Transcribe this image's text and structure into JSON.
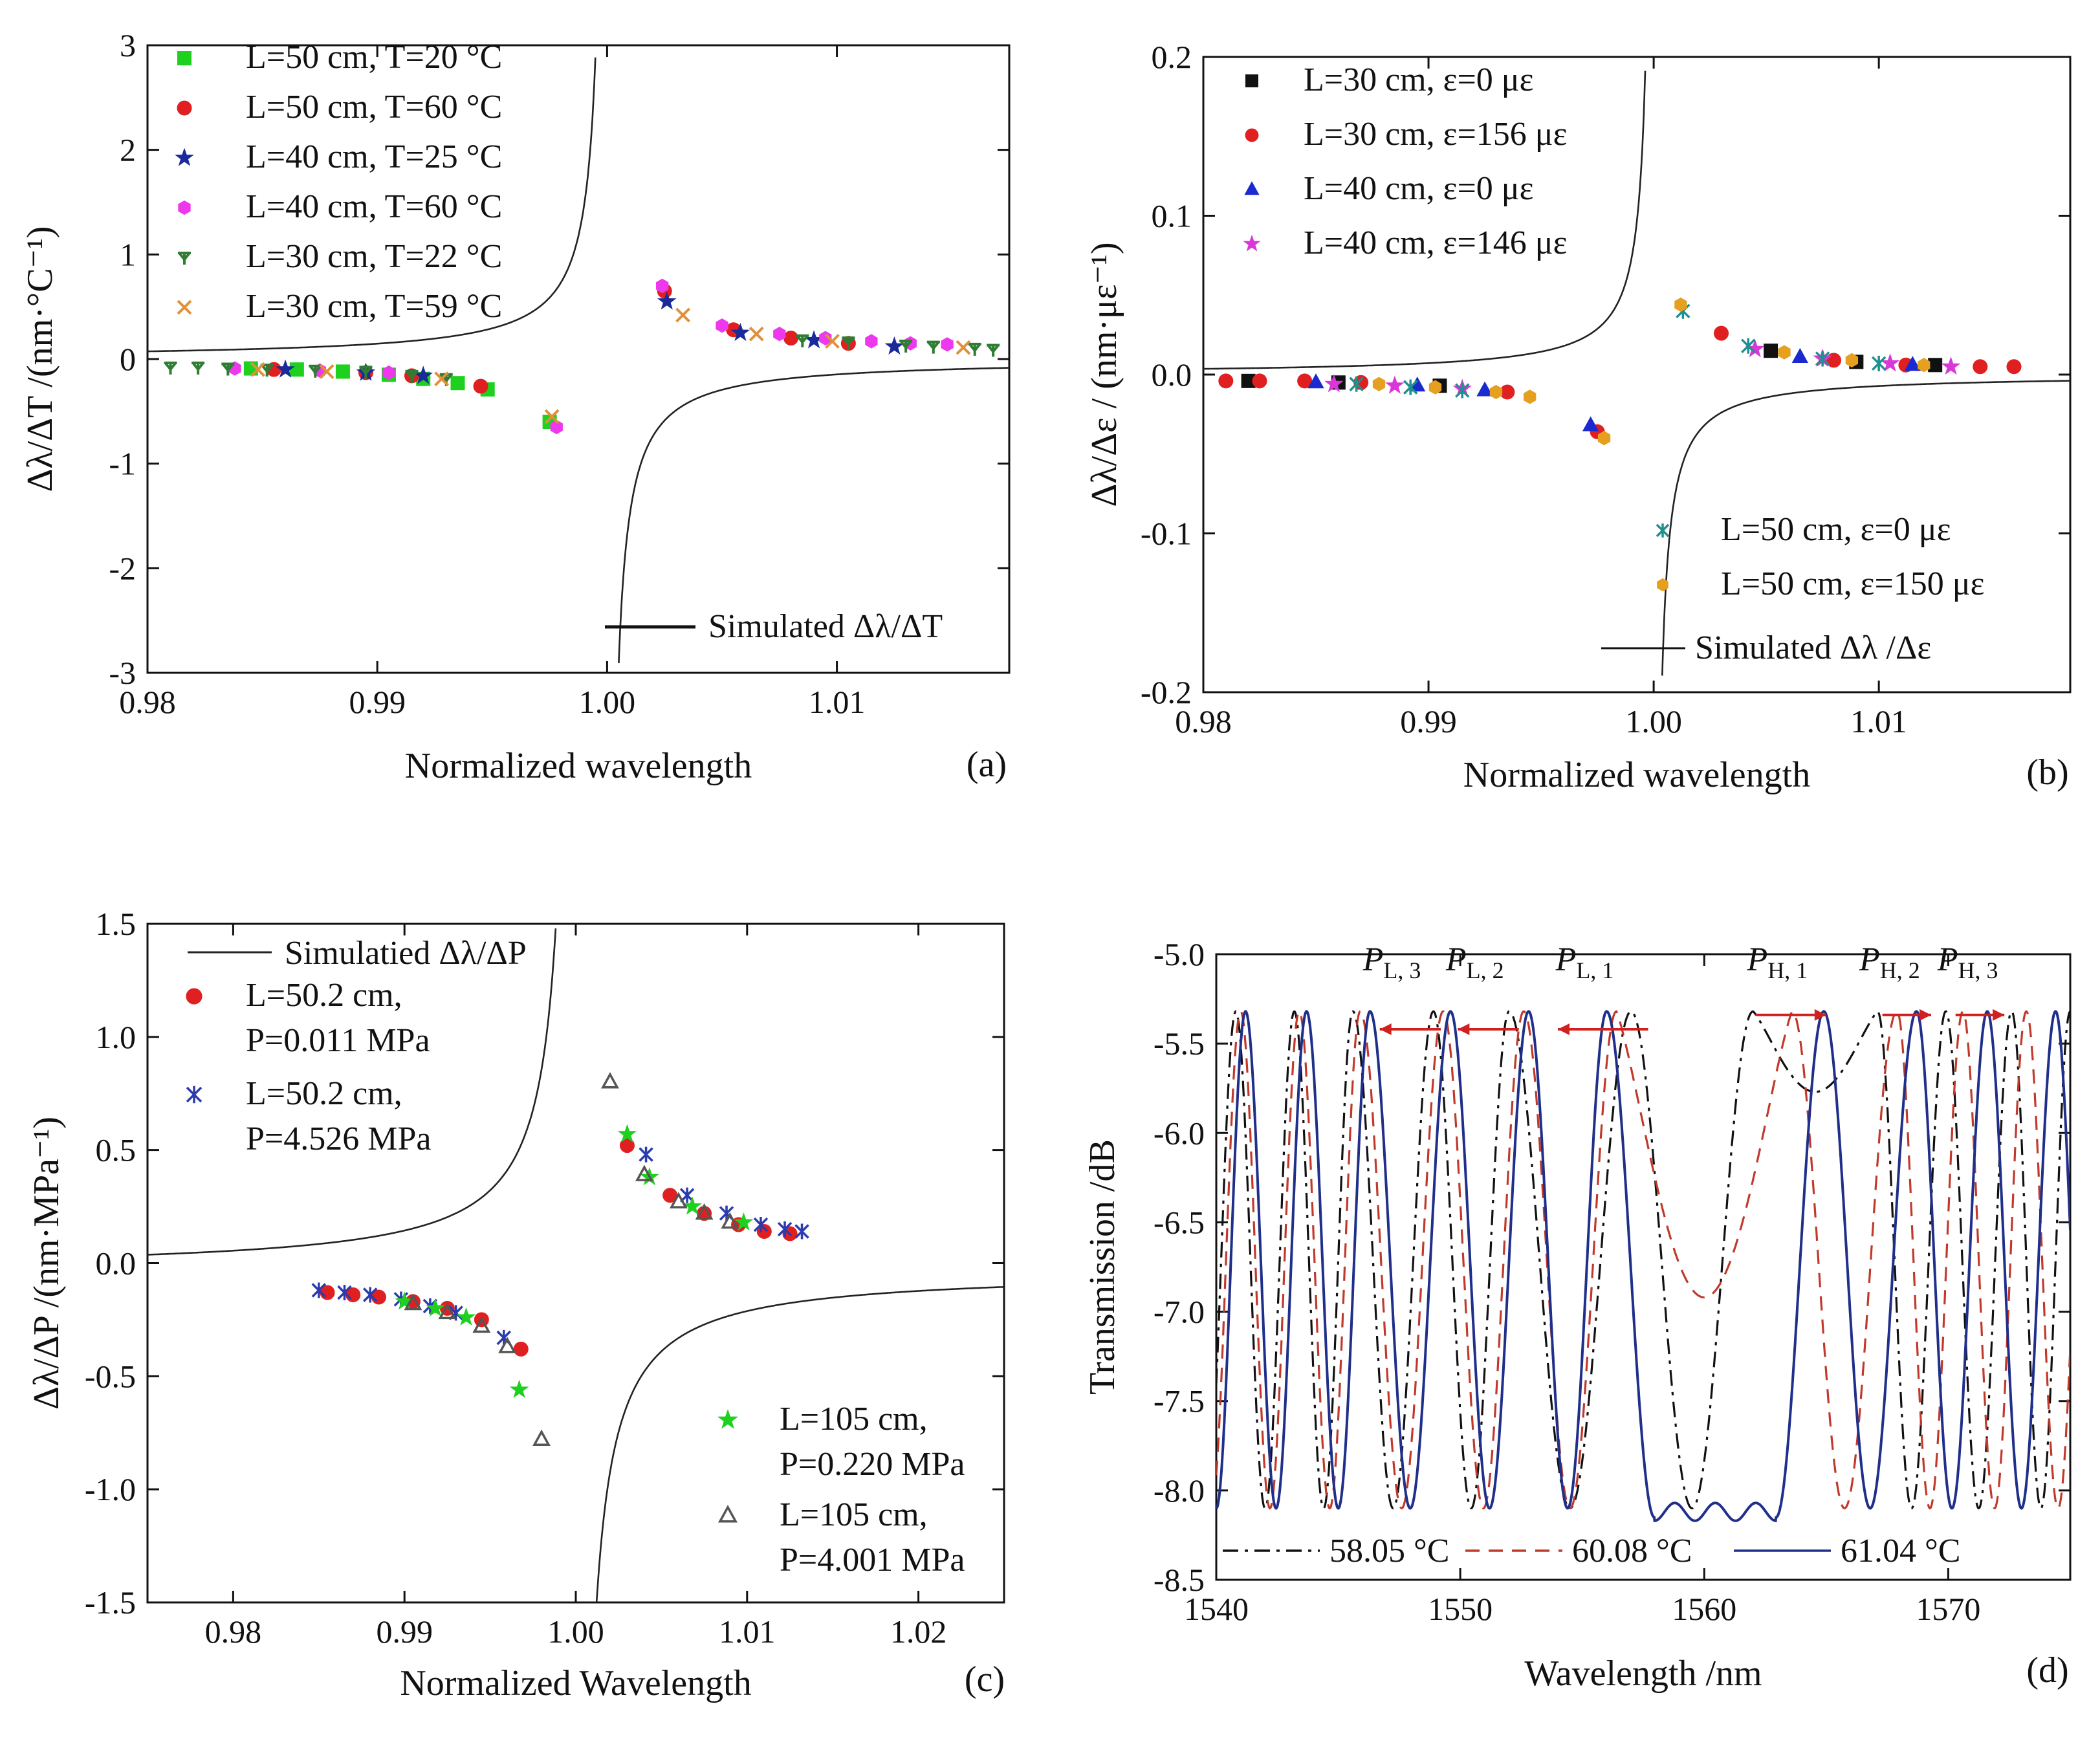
{
  "chart_data": [
    {
      "id": "a",
      "type": "scatter",
      "panel_label": "(a)",
      "xlabel": "Normalized wavelength",
      "ylabel": "Δλ/ΔT /(nm·°C⁻¹)",
      "xlim": [
        0.98,
        1.0175
      ],
      "ylim": [
        -3,
        3
      ],
      "xticks": [
        0.98,
        0.99,
        1.0,
        1.01
      ],
      "xtick_labels": [
        "0.98",
        "0.99",
        "1.00",
        "1.01"
      ],
      "yticks": [
        -3,
        -2,
        -1,
        0,
        1,
        2,
        3
      ],
      "ytick_labels": [
        "-3",
        "-2",
        "-1",
        "0",
        "1",
        "2",
        "3"
      ],
      "legend_position": "top-left",
      "curve": {
        "label": "Simulated Δλ/ΔT",
        "k": -0.00147,
        "c": 0.0
      },
      "series": [
        {
          "name": "L=50 cm, T=20 °C",
          "color": "#1fd11f",
          "marker": "square",
          "x": [
            0.9845,
            0.9865,
            0.9885,
            0.9905,
            0.992,
            0.9935,
            0.9948,
            0.9975
          ],
          "y": [
            -0.09,
            -0.1,
            -0.12,
            -0.15,
            -0.19,
            -0.23,
            -0.29,
            -0.6
          ]
        },
        {
          "name": "L=50 cm, T=60 °C",
          "color": "#e02020",
          "marker": "circle",
          "x": [
            0.9855,
            0.9895,
            0.9915,
            0.9945,
            1.0025,
            1.0055,
            1.008,
            1.0105
          ],
          "y": [
            -0.1,
            -0.13,
            -0.16,
            -0.26,
            0.65,
            0.28,
            0.2,
            0.15
          ]
        },
        {
          "name": "L=40 cm, T=25 °C",
          "color": "#1a2a9a",
          "marker": "star",
          "x": [
            0.986,
            0.9895,
            0.992,
            1.0026,
            1.0058,
            1.009,
            1.0125
          ],
          "y": [
            -0.1,
            -0.13,
            -0.16,
            0.55,
            0.25,
            0.18,
            0.12
          ]
        },
        {
          "name": "L=40 cm, T=60 °C",
          "color": "#ee38ee",
          "marker": "hexagon",
          "x": [
            0.9838,
            0.9875,
            0.9905,
            0.9978,
            1.0024,
            1.005,
            1.0075,
            1.0095,
            1.0115,
            1.0132,
            1.0148
          ],
          "y": [
            -0.09,
            -0.11,
            -0.13,
            -0.65,
            0.7,
            0.32,
            0.24,
            0.2,
            0.17,
            0.15,
            0.14
          ]
        },
        {
          "name": "L=30 cm, T=22 °C",
          "color": "#2e7d32",
          "marker": "tri",
          "x": [
            0.981,
            0.9822,
            0.9835,
            0.9852,
            0.9873,
            0.9895,
            0.9915,
            0.993,
            1.0085,
            1.0105,
            1.013,
            1.0142,
            1.016,
            1.0168
          ],
          "y": [
            -0.08,
            -0.08,
            -0.09,
            -0.1,
            -0.11,
            -0.12,
            -0.16,
            -0.19,
            0.18,
            0.16,
            0.13,
            0.12,
            0.1,
            0.09
          ]
        },
        {
          "name": "L=30 cm, T=59 °C",
          "color": "#e0903a",
          "marker": "x",
          "x": [
            0.9848,
            0.9878,
            0.9928,
            0.9976,
            1.0033,
            1.0065,
            1.0098,
            1.0155
          ],
          "y": [
            -0.1,
            -0.12,
            -0.19,
            -0.55,
            0.42,
            0.24,
            0.17,
            0.11
          ]
        }
      ]
    },
    {
      "id": "b",
      "type": "scatter",
      "panel_label": "(b)",
      "xlabel": "Normalized wavelength",
      "ylabel": "Δλ/Δε / (nm·με⁻¹)",
      "xlim": [
        0.98,
        1.0185
      ],
      "ylim": [
        -0.2,
        0.2
      ],
      "xticks": [
        0.98,
        0.99,
        1.0,
        1.01
      ],
      "xtick_labels": [
        "0.98",
        "0.99",
        "1.00",
        "1.01"
      ],
      "yticks": [
        -0.2,
        -0.1,
        0.0,
        0.1,
        0.2
      ],
      "ytick_labels": [
        "-0.2",
        "-0.1",
        "0.0",
        "0.1",
        "0.2"
      ],
      "legend_position": "top-left and bottom-right",
      "curve": {
        "label": "Simulated Δλ /Δε",
        "k": -7.2e-05,
        "c": 0.0
      },
      "series": [
        {
          "name": "L=30 cm, ε=0 με",
          "color": "#111111",
          "marker": "square",
          "x": [
            0.982,
            0.986,
            0.9905,
            1.0052,
            1.009,
            1.0125
          ],
          "y": [
            -0.004,
            -0.005,
            -0.007,
            0.015,
            0.008,
            0.006
          ]
        },
        {
          "name": "L=30 cm, ε=156 με",
          "color": "#e02020",
          "marker": "circle",
          "x": [
            0.981,
            0.9825,
            0.9845,
            0.987,
            0.9935,
            0.9975,
            1.003,
            1.008,
            1.0112,
            1.0145,
            1.016
          ],
          "y": [
            -0.004,
            -0.004,
            -0.004,
            -0.005,
            -0.011,
            -0.036,
            0.026,
            0.009,
            0.006,
            0.005,
            0.005
          ]
        },
        {
          "name": "L=40 cm, ε=0 με",
          "color": "#1a2ad0",
          "marker": "triangle",
          "x": [
            0.985,
            0.9895,
            0.9925,
            0.9972,
            1.0065,
            1.0115
          ],
          "y": [
            -0.005,
            -0.007,
            -0.01,
            -0.032,
            0.011,
            0.006
          ]
        },
        {
          "name": "L=40 cm, ε=146 με",
          "color": "#d838d8",
          "marker": "star",
          "x": [
            0.9858,
            0.9885,
            0.9915,
            1.0045,
            1.0075,
            1.0105,
            1.0132
          ],
          "y": [
            -0.006,
            -0.007,
            -0.009,
            0.016,
            0.01,
            0.007,
            0.005
          ]
        },
        {
          "name": "L=50 cm, ε=0 με",
          "color": "#1f8f8f",
          "marker": "asterisk",
          "x": [
            0.9868,
            0.9892,
            0.9915,
            1.0013,
            1.0042,
            1.0075,
            1.01
          ],
          "y": [
            -0.006,
            -0.008,
            -0.01,
            0.04,
            0.018,
            0.01,
            0.007
          ]
        },
        {
          "name": "L=50 cm, ε=150 με",
          "color": "#e6a020",
          "marker": "hexagon",
          "x": [
            0.9878,
            0.9903,
            0.993,
            0.9945,
            0.9978,
            1.0012,
            1.0058,
            1.0088,
            1.012
          ],
          "y": [
            -0.006,
            -0.008,
            -0.011,
            -0.014,
            -0.04,
            0.044,
            0.014,
            0.009,
            0.006
          ]
        }
      ]
    },
    {
      "id": "c",
      "type": "scatter",
      "panel_label": "(c)",
      "xlabel": "Normalized Wavelength",
      "ylabel": "Δλ/ΔP /(nm·MPa⁻¹)",
      "xlim": [
        0.975,
        1.025
      ],
      "ylim": [
        -1.5,
        1.5
      ],
      "xticks": [
        0.98,
        0.99,
        1.0,
        1.01,
        1.02
      ],
      "xtick_labels": [
        "0.98",
        "0.99",
        "1.00",
        "1.01",
        "1.02"
      ],
      "yticks": [
        -1.5,
        -1.0,
        -0.5,
        0.0,
        0.5,
        1.0,
        1.5
      ],
      "ytick_labels": [
        "-1.5",
        "-1.0",
        "-0.5",
        "0.0",
        "0.5",
        "1.0",
        "1.5"
      ],
      "legend_position": "top-left and bottom-right",
      "curve": {
        "label": "Simulatied Δλ/ΔP",
        "k": -0.00178,
        "c": -0.034
      },
      "series": [
        {
          "name": "L=50.2 cm, P=0.011 MPa",
          "label_lines": [
            "L=50.2 cm,",
            "P=0.011 MPa"
          ],
          "color": "#e02020",
          "marker": "circle",
          "x": [
            0.9855,
            0.987,
            0.9885,
            0.9905,
            0.9925,
            0.9945,
            0.9968,
            1.003,
            1.0055,
            1.0075,
            1.0095,
            1.011,
            1.0125
          ],
          "y": [
            -0.13,
            -0.14,
            -0.15,
            -0.17,
            -0.2,
            -0.25,
            -0.38,
            0.52,
            0.3,
            0.22,
            0.17,
            0.14,
            0.13
          ]
        },
        {
          "name": "L=50.2 cm, P=4.526 MPa",
          "label_lines": [
            "L=50.2 cm,",
            "P=4.526 MPa"
          ],
          "color": "#2a3ab0",
          "marker": "asterisk",
          "x": [
            0.985,
            0.9865,
            0.988,
            0.9898,
            0.9915,
            0.993,
            0.9958,
            1.0041,
            1.0065,
            1.0088,
            1.0108,
            1.0122,
            1.0132
          ],
          "y": [
            -0.12,
            -0.13,
            -0.14,
            -0.16,
            -0.19,
            -0.22,
            -0.33,
            0.48,
            0.3,
            0.22,
            0.17,
            0.15,
            0.14
          ]
        },
        {
          "name": "L=105 cm, P=0.220 MPa",
          "label_lines": [
            "L=105 cm,",
            "P=0.220 MPa"
          ],
          "color": "#1fd11f",
          "marker": "star",
          "x": [
            0.99,
            0.9918,
            0.9936,
            0.9967,
            1.003,
            1.0043,
            1.0068,
            1.0098
          ],
          "y": [
            -0.17,
            -0.2,
            -0.24,
            -0.56,
            0.57,
            0.38,
            0.25,
            0.18
          ]
        },
        {
          "name": "L=105 cm, P=4.001 MPa",
          "label_lines": [
            "L=105 cm,",
            "P=4.001 MPa"
          ],
          "color": "#555555",
          "marker": "open-triangle",
          "x": [
            0.9905,
            0.9925,
            0.9945,
            0.996,
            0.998,
            1.002,
            1.004,
            1.006,
            1.0075,
            1.009
          ],
          "y": [
            -0.18,
            -0.22,
            -0.28,
            -0.37,
            -0.78,
            0.8,
            0.39,
            0.27,
            0.22,
            0.18
          ]
        }
      ]
    },
    {
      "id": "d",
      "type": "line",
      "panel_label": "(d)",
      "xlabel": "Wavelength /nm",
      "ylabel": "Transmission /dB",
      "xlim": [
        1540,
        1575
      ],
      "ylim": [
        -8.5,
        -5.0
      ],
      "xticks": [
        1540,
        1550,
        1560,
        1570
      ],
      "xtick_labels": [
        "1540",
        "1550",
        "1560",
        "1570"
      ],
      "yticks": [
        -8.5,
        -8.0,
        -7.5,
        -7.0,
        -6.5,
        -6.0,
        -5.5,
        -5.0
      ],
      "ytick_labels": [
        "-8.5",
        "-8.0",
        "-7.5",
        "-7.0",
        "-6.5",
        "-6.0",
        "-5.5",
        "-5.0"
      ],
      "legend_position": "bottom",
      "spectrum_model": {
        "center_nm": [
          1559.5,
          1561.6,
          1566.5
        ],
        "beat_period_nm": 2.4
      },
      "series": [
        {
          "name": "58.05 °C",
          "color": "#111111",
          "dash": "dashdot",
          "peaks_nm": [
            1540.8,
            1543.2,
            1545.6,
            1548.9,
            1552.0,
            1557.0,
            1562.0,
            1567.1,
            1569.9,
            1572.6,
            1575.0
          ],
          "dip_depth_db": 0.45
        },
        {
          "name": "60.08 °C",
          "color": "#c0392b",
          "dash": "dash",
          "peaks_nm": [
            1541.0,
            1543.4,
            1545.9,
            1549.3,
            1552.6,
            1556.4,
            1563.6,
            1567.9,
            1570.6,
            1573.2
          ],
          "dip_depth_db": 1.6
        },
        {
          "name": "61.04 °C",
          "color": "#1f2f8a",
          "dash": "solid",
          "peaks_nm": [
            1541.2,
            1543.7,
            1546.3,
            1549.6,
            1552.8,
            1556.0,
            1564.9,
            1568.7,
            1571.6,
            1574.4
          ],
          "dip_depth_db": 2.9
        }
      ],
      "annotations": [
        {
          "text": "P",
          "sub": "L, 3",
          "x": 1547.2,
          "y": -5.09,
          "arrow": "left",
          "arrow_from": 1549.2,
          "arrow_to": 1546.7,
          "arrow_y": -5.42
        },
        {
          "text": "P",
          "sub": "L, 2",
          "x": 1550.6,
          "y": -5.09,
          "arrow": "left",
          "arrow_from": 1552.4,
          "arrow_to": 1549.9,
          "arrow_y": -5.42
        },
        {
          "text": "P",
          "sub": "L, 1",
          "x": 1555.1,
          "y": -5.09,
          "arrow": "left",
          "arrow_from": 1557.7,
          "arrow_to": 1554.0,
          "arrow_y": -5.42
        },
        {
          "text": "P",
          "sub": "H, 1",
          "x": 1563.0,
          "y": -5.09,
          "arrow": "right",
          "arrow_from": 1562.1,
          "arrow_to": 1565.0,
          "arrow_y": -5.34
        },
        {
          "text": "P",
          "sub": "H, 2",
          "x": 1567.6,
          "y": -5.09,
          "arrow": "right",
          "arrow_from": 1567.3,
          "arrow_to": 1569.3,
          "arrow_y": -5.34
        },
        {
          "text": "P",
          "sub": "H, 3",
          "x": 1570.8,
          "y": -5.09,
          "arrow": "right",
          "arrow_from": 1570.3,
          "arrow_to": 1572.3,
          "arrow_y": -5.34
        }
      ]
    }
  ]
}
